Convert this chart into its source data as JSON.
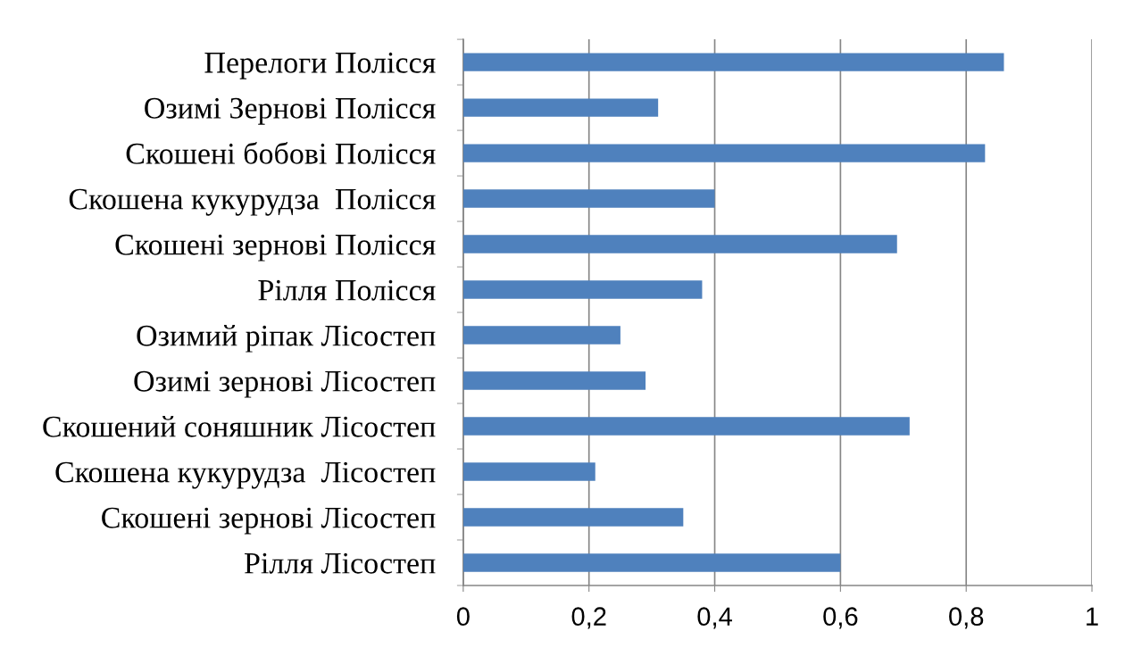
{
  "chart_data": {
    "type": "bar",
    "orientation": "horizontal",
    "categories": [
      "Перелоги Полісся",
      "Озимі Зернові Полісся",
      "Скошені бобові Полісся",
      "Скошена кукурудза  Полісся",
      "Скошені зернові Полісся",
      "Рілля Полісся",
      "Озимий ріпак Лісостеп",
      "Озимі зернові Лісостеп",
      "Скошений соняшник Лісостеп",
      "Скошена кукурудза  Лісостеп",
      "Скошені зернові Лісостеп",
      "Рілля Лісостеп"
    ],
    "values": [
      0.86,
      0.31,
      0.83,
      0.4,
      0.69,
      0.38,
      0.25,
      0.29,
      0.71,
      0.21,
      0.35,
      0.6
    ],
    "color": "#4f81bd",
    "xlim": [
      0,
      1
    ],
    "xticks": [
      0,
      {
        "value": 0.2,
        "label": "0,2"
      },
      {
        "value": 0.4,
        "label": "0,4"
      },
      {
        "value": 0.6,
        "label": "0,6"
      },
      {
        "value": 0.8,
        "label": "0,8"
      },
      1
    ],
    "grid": "x"
  }
}
